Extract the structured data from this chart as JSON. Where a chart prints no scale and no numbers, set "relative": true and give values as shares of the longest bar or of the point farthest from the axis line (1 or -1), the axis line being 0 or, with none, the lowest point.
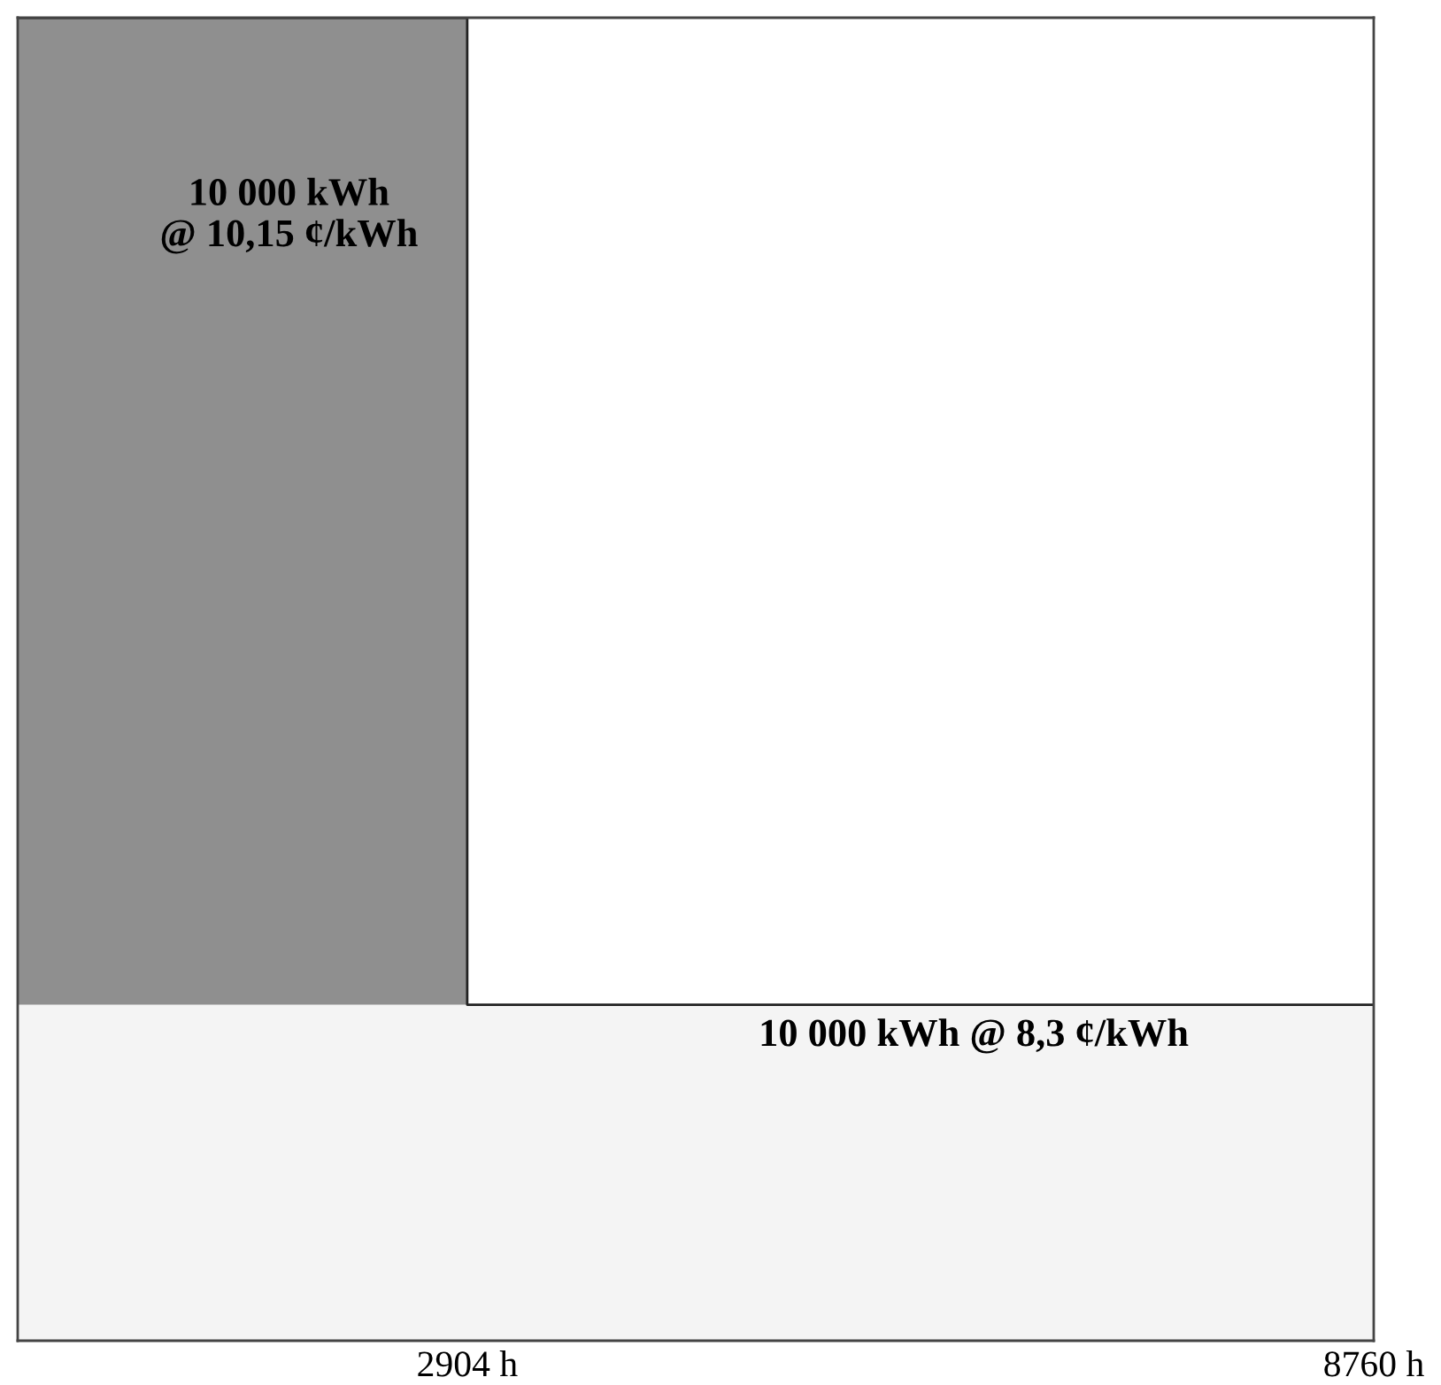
{
  "chart_data": {
    "type": "area",
    "relative": true,
    "xlim": [
      0,
      8760
    ],
    "xticks": [
      {
        "value": 2904,
        "label": "2904 h"
      },
      {
        "value": 8760,
        "label": "8760 h"
      }
    ],
    "series": [
      {
        "color": "#8f8f8f",
        "x": [
          0,
          2904,
          2904,
          8760
        ],
        "values": [
          1,
          1,
          0.254,
          0.254
        ]
      }
    ],
    "bands": [
      {
        "axis": "y",
        "from": 0,
        "to": 0.254,
        "color": "#f4f4f4"
      }
    ],
    "annotations": [
      "10 000 kWh\n@ 10,15 ¢/kWh",
      "10 000 kWh @ 8,3 ¢/kWh"
    ],
    "grid": false,
    "legend": false
  }
}
